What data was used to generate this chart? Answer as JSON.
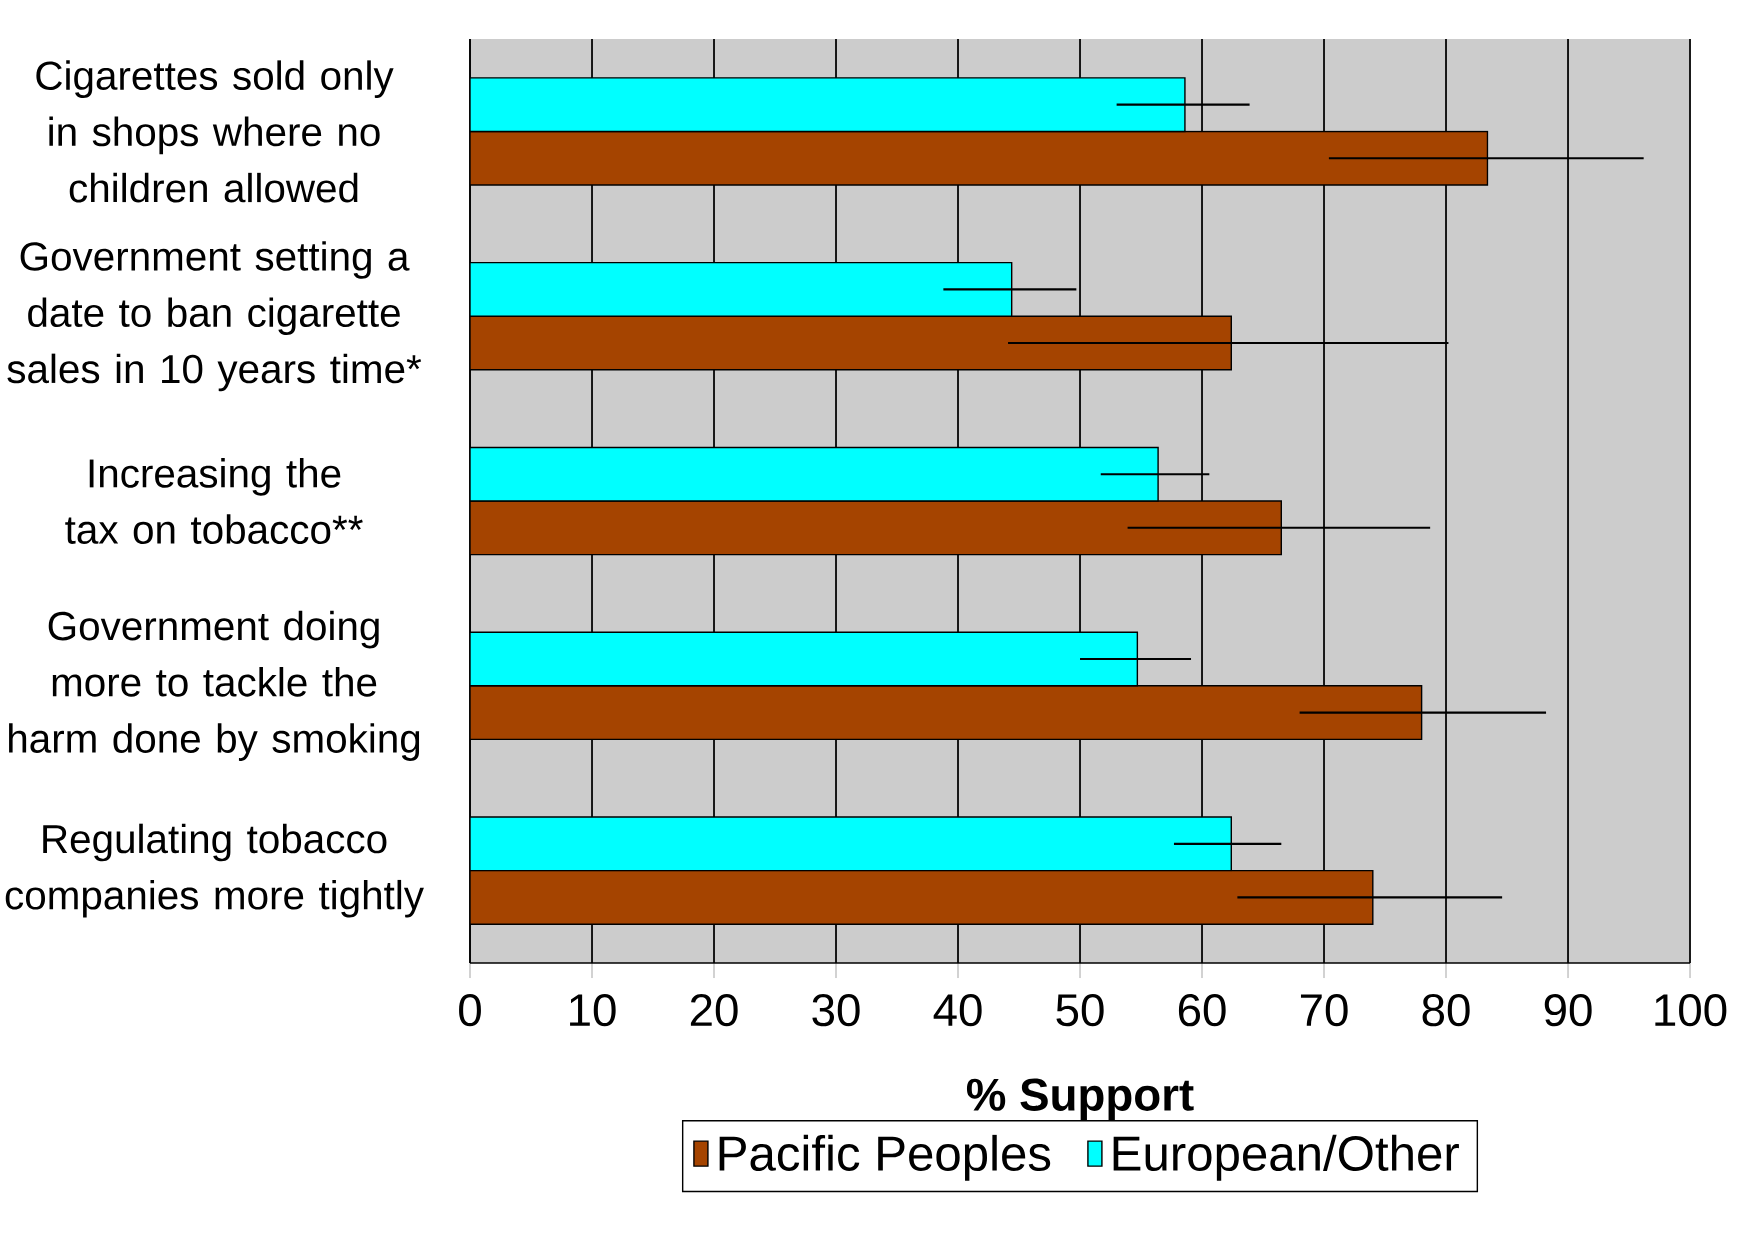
{
  "chart_data": {
    "type": "bar",
    "orientation": "horizontal",
    "xlabel": "% Support",
    "categories": [
      "Cigarettes sold only in shops where no children allowed",
      "Government setting a date to ban cigarette sales in 10 years time*",
      "Increasing the tax on tobacco**",
      "Government doing more to tackle the harm done by smoking",
      "Regulating tobacco companies more tightly"
    ],
    "series": [
      {
        "name": "Pacific Peoples",
        "color": "#a54400",
        "values": [
          83.4,
          62.4,
          66.5,
          78.0,
          74.0
        ],
        "errors": [
          [
            70.4,
            96.2
          ],
          [
            44.1,
            80.2
          ],
          [
            53.9,
            78.7
          ],
          [
            68.0,
            88.2
          ],
          [
            62.9,
            84.6
          ]
        ]
      },
      {
        "name": "European/Other",
        "color": "#00ffff",
        "values": [
          58.6,
          44.4,
          56.4,
          54.7,
          62.4
        ],
        "errors": [
          [
            53.0,
            63.9
          ],
          [
            38.8,
            49.7
          ],
          [
            51.7,
            60.6
          ],
          [
            50.0,
            59.1
          ],
          [
            57.7,
            66.5
          ]
        ]
      }
    ],
    "xlim": [
      0,
      100
    ],
    "xticks": [
      0,
      10,
      20,
      30,
      40,
      50,
      60,
      70,
      80,
      90,
      100
    ],
    "grid": "x",
    "legend": "bottom"
  }
}
